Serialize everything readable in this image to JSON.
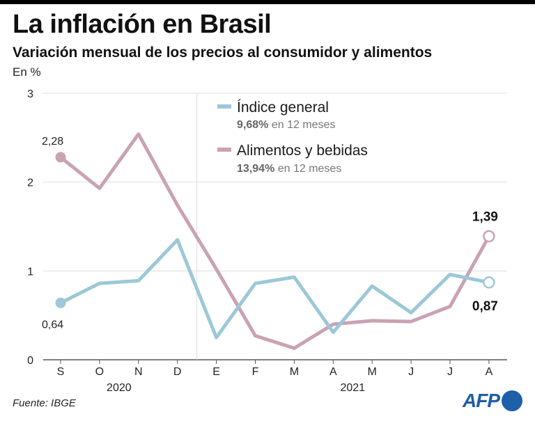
{
  "header": {
    "title": "La inflación en Brasil",
    "subtitle": "Variación mensual de los precios al consumidor y alimentos",
    "unit": "En %"
  },
  "footer": {
    "source": "Fuente: IBGE",
    "logo": "AFP"
  },
  "colors": {
    "general": "#9cc8d8",
    "food": "#c9a2b3",
    "axis": "#555555",
    "grid": "#dddddd",
    "logo": "#1d5fa8"
  },
  "chart_data": {
    "type": "line",
    "title": "La inflación en Brasil",
    "ylabel": "En %",
    "ylim": [
      0,
      3
    ],
    "yticks": [
      0,
      1,
      2,
      3
    ],
    "categories": [
      "S",
      "O",
      "N",
      "D",
      "E",
      "F",
      "M",
      "A",
      "M",
      "J",
      "J",
      "A"
    ],
    "years": [
      {
        "label": "2020",
        "from": 0,
        "to": 3
      },
      {
        "label": "2021",
        "from": 4,
        "to": 11
      }
    ],
    "year_divider_after": 3,
    "series": [
      {
        "name": "Índice general",
        "bold": "9,68%",
        "note": "en 12 meses",
        "values": [
          0.64,
          0.86,
          0.89,
          1.35,
          0.25,
          0.86,
          0.93,
          0.31,
          0.83,
          0.53,
          0.96,
          0.87
        ]
      },
      {
        "name": "Alimentos y bebidas",
        "bold": "13,94%",
        "note": "en 12 meses",
        "values": [
          2.28,
          1.93,
          2.54,
          1.74,
          1.02,
          0.27,
          0.13,
          0.4,
          0.44,
          0.43,
          0.6,
          1.39
        ]
      }
    ],
    "labels": {
      "general_first": "0,64",
      "general_last": "0,87",
      "food_first": "2,28",
      "food_last": "1,39"
    }
  }
}
